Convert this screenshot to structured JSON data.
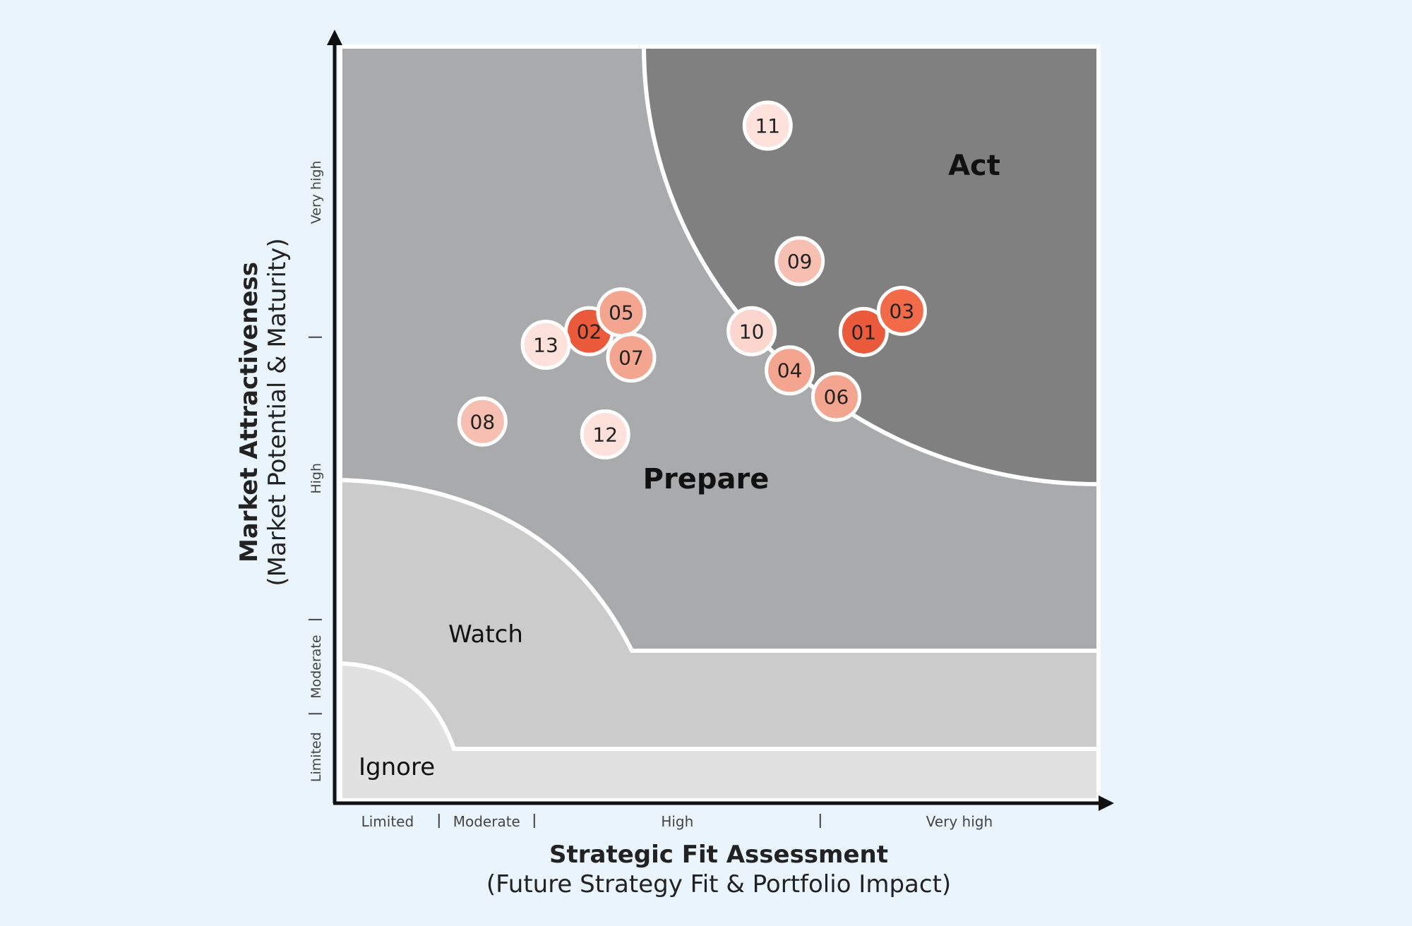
{
  "chart_data": {
    "type": "scatter",
    "title": "",
    "zones": [
      {
        "id": "act",
        "label": "Act",
        "color": "#808080"
      },
      {
        "id": "prepare",
        "label": "Prepare",
        "color": "#a9aaab"
      },
      {
        "id": "watch",
        "label": "Watch",
        "color": "#cbcbcb"
      },
      {
        "id": "ignore",
        "label": "Ignore",
        "color": "#e1e1e1"
      }
    ],
    "x_axis": {
      "title": "Strategic Fit Assessment",
      "subtitle": "(Future Strategy Fit & Portfolio Impact)",
      "range": [
        0,
        100
      ],
      "categories": [
        {
          "label": "Limited",
          "from": 0,
          "to": 13.5
        },
        {
          "label": "Moderate",
          "from": 13.5,
          "to": 26
        },
        {
          "label": "High",
          "from": 26,
          "to": 63.5
        },
        {
          "label": "Very high",
          "from": 63.5,
          "to": 100
        }
      ]
    },
    "y_axis": {
      "title": "Market Attractiveness",
      "subtitle": "(Market Potential & Maturity)",
      "range": [
        0,
        100
      ],
      "categories": [
        {
          "label": "Limited",
          "from": 0,
          "to": 11.5
        },
        {
          "label": "Moderate",
          "from": 11.5,
          "to": 24
        },
        {
          "label": "High",
          "from": 24,
          "to": 61.5
        },
        {
          "label": "Very high",
          "from": 61.5,
          "to": 100
        }
      ]
    },
    "points": [
      {
        "id": "01",
        "x": 69.2,
        "y": 62.2,
        "color": "#ea5a3b"
      },
      {
        "id": "02",
        "x": 33.2,
        "y": 62.3,
        "color": "#ea5a3b"
      },
      {
        "id": "03",
        "x": 74.2,
        "y": 65.0,
        "color": "#f36a48"
      },
      {
        "id": "04",
        "x": 59.5,
        "y": 57.1,
        "color": "#f3a590"
      },
      {
        "id": "05",
        "x": 37.4,
        "y": 64.8,
        "color": "#f3a590"
      },
      {
        "id": "06",
        "x": 65.6,
        "y": 53.6,
        "color": "#f3a590"
      },
      {
        "id": "07",
        "x": 38.7,
        "y": 58.8,
        "color": "#f3a590"
      },
      {
        "id": "08",
        "x": 19.2,
        "y": 50.3,
        "color": "#f6bfb1"
      },
      {
        "id": "09",
        "x": 60.8,
        "y": 71.6,
        "color": "#f6bfb1"
      },
      {
        "id": "10",
        "x": 54.5,
        "y": 62.3,
        "color": "#fbd6ce"
      },
      {
        "id": "11",
        "x": 56.6,
        "y": 89.6,
        "color": "#fde1da"
      },
      {
        "id": "12",
        "x": 35.3,
        "y": 48.6,
        "color": "#fde1da"
      },
      {
        "id": "13",
        "x": 27.5,
        "y": 60.5,
        "color": "#fde1da"
      }
    ]
  }
}
